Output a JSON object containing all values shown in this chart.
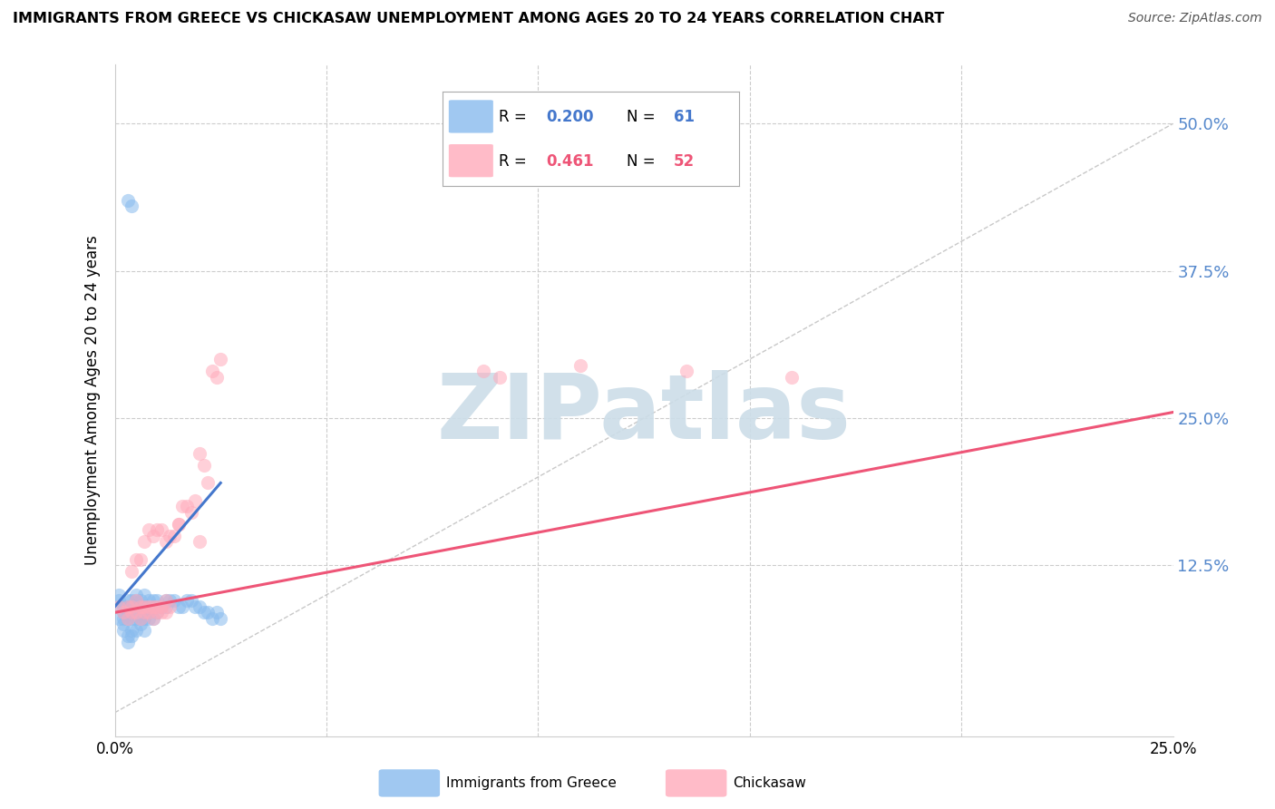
{
  "title": "IMMIGRANTS FROM GREECE VS CHICKASAW UNEMPLOYMENT AMONG AGES 20 TO 24 YEARS CORRELATION CHART",
  "source": "Source: ZipAtlas.com",
  "ylabel": "Unemployment Among Ages 20 to 24 years",
  "xlim": [
    0.0,
    0.25
  ],
  "ylim": [
    -0.02,
    0.55
  ],
  "color_blue": "#88BBEE",
  "color_pink": "#FFAABB",
  "color_trend_blue": "#4477CC",
  "color_trend_pink": "#EE5577",
  "color_diag": "#BBBBBB",
  "color_grid": "#CCCCCC",
  "color_right_axis": "#5588CC",
  "watermark": "ZIPatlas",
  "watermark_color": "#CCDDE8",
  "background_color": "#FFFFFF",
  "blue_x": [
    0.001,
    0.001,
    0.001,
    0.001,
    0.002,
    0.002,
    0.002,
    0.002,
    0.002,
    0.003,
    0.003,
    0.003,
    0.003,
    0.003,
    0.003,
    0.004,
    0.004,
    0.004,
    0.004,
    0.004,
    0.004,
    0.005,
    0.005,
    0.005,
    0.005,
    0.005,
    0.006,
    0.006,
    0.006,
    0.006,
    0.007,
    0.007,
    0.007,
    0.007,
    0.007,
    0.008,
    0.008,
    0.008,
    0.009,
    0.009,
    0.009,
    0.01,
    0.01,
    0.011,
    0.012,
    0.012,
    0.013,
    0.014,
    0.015,
    0.016,
    0.017,
    0.018,
    0.019,
    0.02,
    0.021,
    0.022,
    0.023,
    0.024,
    0.025,
    0.003,
    0.004
  ],
  "blue_y": [
    0.08,
    0.09,
    0.095,
    0.1,
    0.07,
    0.075,
    0.08,
    0.085,
    0.09,
    0.06,
    0.065,
    0.08,
    0.085,
    0.09,
    0.095,
    0.065,
    0.07,
    0.08,
    0.085,
    0.09,
    0.095,
    0.07,
    0.08,
    0.09,
    0.095,
    0.1,
    0.075,
    0.08,
    0.09,
    0.095,
    0.07,
    0.08,
    0.085,
    0.09,
    0.1,
    0.08,
    0.085,
    0.095,
    0.08,
    0.09,
    0.095,
    0.085,
    0.095,
    0.09,
    0.09,
    0.095,
    0.095,
    0.095,
    0.09,
    0.09,
    0.095,
    0.095,
    0.09,
    0.09,
    0.085,
    0.085,
    0.08,
    0.085,
    0.08,
    0.435,
    0.43
  ],
  "pink_x": [
    0.001,
    0.002,
    0.003,
    0.003,
    0.004,
    0.004,
    0.005,
    0.005,
    0.006,
    0.006,
    0.007,
    0.007,
    0.008,
    0.008,
    0.009,
    0.009,
    0.01,
    0.01,
    0.011,
    0.011,
    0.012,
    0.012,
    0.013,
    0.014,
    0.015,
    0.016,
    0.017,
    0.018,
    0.019,
    0.02,
    0.02,
    0.021,
    0.022,
    0.023,
    0.024,
    0.025,
    0.004,
    0.005,
    0.006,
    0.007,
    0.008,
    0.009,
    0.01,
    0.011,
    0.012,
    0.013,
    0.015,
    0.087,
    0.091,
    0.11,
    0.135,
    0.16
  ],
  "pink_y": [
    0.09,
    0.085,
    0.08,
    0.09,
    0.085,
    0.09,
    0.085,
    0.095,
    0.08,
    0.09,
    0.085,
    0.09,
    0.085,
    0.09,
    0.08,
    0.09,
    0.085,
    0.09,
    0.085,
    0.09,
    0.085,
    0.095,
    0.09,
    0.15,
    0.16,
    0.175,
    0.175,
    0.17,
    0.18,
    0.145,
    0.22,
    0.21,
    0.195,
    0.29,
    0.285,
    0.3,
    0.12,
    0.13,
    0.13,
    0.145,
    0.155,
    0.15,
    0.155,
    0.155,
    0.145,
    0.15,
    0.16,
    0.29,
    0.285,
    0.295,
    0.29,
    0.285
  ],
  "blue_trend": [
    0.0,
    0.025,
    0.09,
    0.195
  ],
  "pink_trend": [
    0.0,
    0.25,
    0.085,
    0.255
  ],
  "diag_line": [
    0.0,
    0.25,
    0.0,
    0.5
  ]
}
